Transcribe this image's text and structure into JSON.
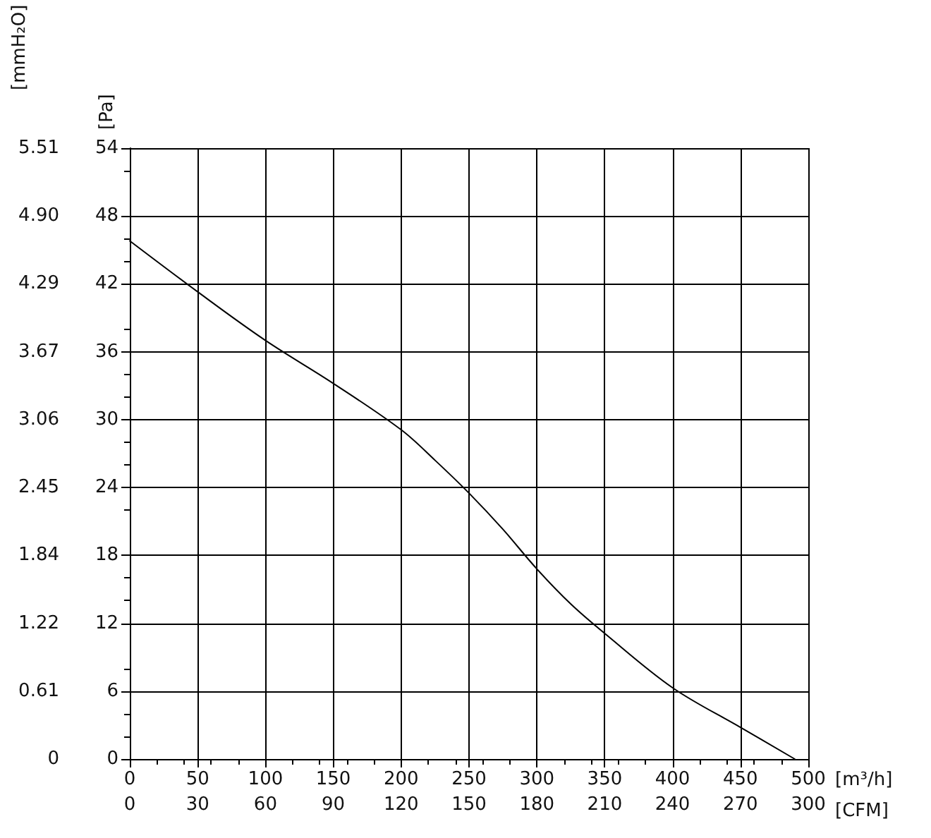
{
  "chart_data": {
    "type": "line",
    "xlabel": "[m³/h]",
    "x2label": "[CFM]",
    "ylabel": "[Pa]",
    "y2label": "[mmH₂O]",
    "x": [
      0,
      50,
      100,
      150,
      200,
      225,
      250,
      275,
      300,
      325,
      350,
      400,
      450,
      490
    ],
    "series": [
      {
        "color": "#000000",
        "values": [
          45.8,
          41.3,
          37.0,
          33.2,
          29.1,
          26.4,
          23.5,
          20.3,
          16.8,
          13.7,
          11.1,
          6.3,
          2.8,
          0
        ]
      }
    ],
    "xlim": [
      0,
      500
    ],
    "xticks": [
      0,
      50,
      100,
      150,
      200,
      250,
      300,
      350,
      400,
      450,
      500
    ],
    "x2lim": [
      0,
      300
    ],
    "x2ticks": [
      0,
      30,
      60,
      90,
      120,
      150,
      180,
      210,
      240,
      270,
      300
    ],
    "ylim": [
      0,
      54
    ],
    "yticks": [
      0,
      6,
      12,
      18,
      24,
      30,
      36,
      42,
      48,
      54
    ],
    "y2lim": [
      0,
      5.51
    ],
    "y2ticks": [
      0,
      0.61,
      1.22,
      1.84,
      2.45,
      3.06,
      3.67,
      4.29,
      {
        "value": 4.9,
        "label": "4.90"
      },
      5.51
    ],
    "grid": true,
    "line_style": "solid"
  }
}
